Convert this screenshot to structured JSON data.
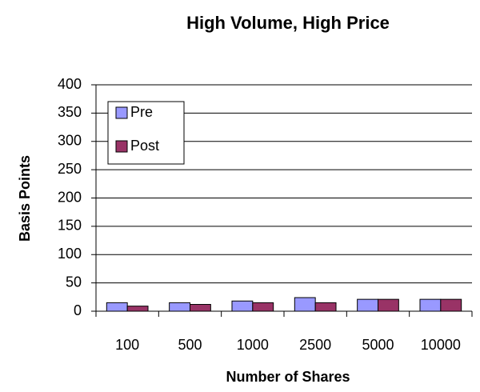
{
  "chart_data": {
    "type": "bar",
    "title": "High Volume, High Price",
    "x_label": "Number of Shares",
    "y_label": "Basis Points",
    "categories": [
      "100",
      "500",
      "1000",
      "2500",
      "5000",
      "10000"
    ],
    "series": [
      {
        "name": "Pre",
        "color": "#9999ff",
        "values": [
          15,
          15,
          18,
          24,
          21,
          21
        ]
      },
      {
        "name": "Post",
        "color": "#993366",
        "values": [
          9,
          12,
          15,
          15,
          21,
          21
        ]
      }
    ],
    "ylim": [
      0,
      400
    ],
    "yticks": [
      0,
      50,
      100,
      150,
      200,
      250,
      300,
      350,
      400
    ],
    "grid": true,
    "legend": "upper left"
  }
}
